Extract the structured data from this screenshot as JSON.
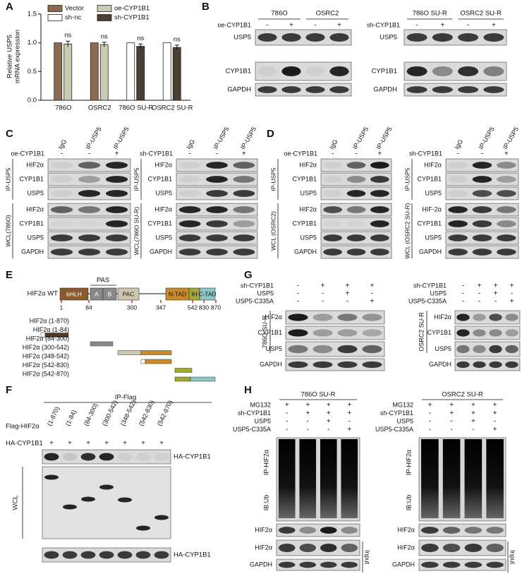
{
  "chart_data": {
    "type": "bar",
    "label": "A",
    "ylabel": [
      "Relative USP5",
      "mRNA expression"
    ],
    "categories": [
      "786O",
      "OSRC2",
      "786O SU-R",
      "OSRC2 SU-R"
    ],
    "series": [
      {
        "name": "Vector",
        "color": "#8c6a4f",
        "values": [
          1,
          1,
          null,
          null
        ]
      },
      {
        "name": "oe-CYP1B1",
        "color": "#c9ccb3",
        "values": [
          0.98,
          0.97,
          null,
          null
        ],
        "errors": [
          0.05,
          0.04,
          null,
          null
        ]
      },
      {
        "name": "sh-nc",
        "color": "#ffffff",
        "values": [
          null,
          null,
          1,
          1
        ]
      },
      {
        "name": "sh-CYP1B1",
        "color": "#4b3e33",
        "values": [
          null,
          null,
          0.94,
          0.92
        ],
        "errors": [
          null,
          null,
          0.04,
          0.04
        ]
      }
    ],
    "ylim": [
      0,
      1.5
    ],
    "yticks": [
      {
        "value": 0,
        "label": "0.0"
      },
      0.5,
      {
        "value": 1,
        "label": "1.0"
      },
      1.5
    ],
    "annotations": [
      "ns",
      "ns",
      "ns",
      "ns"
    ]
  },
  "B": {
    "label": "B",
    "blots": [
      {
        "groups": [
          "786O",
          "OSRC2"
        ],
        "condition": "oe-CYP1B1",
        "signs": [
          "-",
          "+",
          "-",
          "+"
        ],
        "rows": [
          "USP5",
          "CYP1B1",
          "GAPDH"
        ]
      },
      {
        "groups": [
          "786O SU-R",
          "OSRC2 SU-R"
        ],
        "condition": "sh-CYP1B1",
        "signs": [
          "-",
          "+",
          "-",
          "+"
        ],
        "rows": [
          "USP5",
          "CYP1B1",
          "GAPDH"
        ]
      }
    ]
  },
  "C": {
    "label": "C",
    "blots": [
      {
        "columns": [
          "IgG",
          "IP-USP5",
          "IP-USP5"
        ],
        "condition": "oe-CYP1B1",
        "signs": [
          "-",
          "-",
          "+"
        ],
        "sections": [
          {
            "name": "IP-USP5",
            "rows": [
              "HIF2α",
              "CYP1B1",
              "USP5"
            ]
          },
          {
            "name": "WCL(786O)",
            "rows": [
              "HIF2α",
              "CYP1B1",
              "USP5",
              "GAPDH"
            ]
          }
        ]
      },
      {
        "columns": [
          "IgG",
          "IP-USP5",
          "IP-USP5"
        ],
        "condition": "sh-CYP1B1",
        "signs": [
          "-",
          "-",
          "+"
        ],
        "sections": [
          {
            "name": "IP-USP5",
            "rows": [
              "HIF2α",
              "CYP1B1",
              "USP5"
            ]
          },
          {
            "name": "WCL(786O SU-R)",
            "rows": [
              "HIF2α",
              "CYP1B1",
              "USP5",
              "GAPDH"
            ]
          }
        ]
      }
    ]
  },
  "D": {
    "label": "D",
    "blots": [
      {
        "columns": [
          "IgG",
          "IP-USP5",
          "IP-USP5"
        ],
        "condition": "oe-CYP1B1",
        "signs": [
          "-",
          "-",
          "+"
        ],
        "sections": [
          {
            "name": "IP-USP5",
            "rows": [
              "HIF2α",
              "CYP1B1",
              "USP5"
            ]
          },
          {
            "name": "WCL (OSRC2)",
            "rows": [
              "HIF2α",
              "CYP1B1",
              "USP5",
              "GAPDH"
            ]
          }
        ]
      },
      {
        "columns": [
          "IgG",
          "IP-USP5",
          "IP-USP5"
        ],
        "condition": "sh-CYP1B1",
        "signs": [
          "-",
          "-",
          "+"
        ],
        "sections": [
          {
            "name": "IP-USP5",
            "rows": [
              "HIF2α",
              "CYP1B1",
              "USP5"
            ]
          },
          {
            "name": "WCL (OSRC2 SU-R)",
            "rows": [
              "HIF-2α",
              "CYP1B1",
              "USP5",
              "GAPDH"
            ]
          }
        ]
      }
    ]
  },
  "E": {
    "label": "E",
    "domain_group": "PAS",
    "construct": "HIF2α WT",
    "domains": [
      "bHLH",
      "A",
      "B",
      "PAC",
      "N-TAD",
      "IH",
      "C-TAD"
    ],
    "positions": [
      1,
      84,
      300,
      347,
      542,
      830,
      870
    ],
    "fragments": [
      "HIF2α (1-870)",
      "HIF2α (1-84)",
      "HIF2α (84-300)",
      "HIF2α (300-542)",
      "HIF2α (348-542)",
      "HIF2α (542-830)",
      "HIF2α (542-870)"
    ]
  },
  "F": {
    "label": "F",
    "title": "IP-Flag",
    "bait": "Flag-HIF2α",
    "columns": [
      "(1-870)",
      "(1-84)",
      "(84-300)",
      "(300-542)",
      "(348-542)",
      "(542-830)",
      "(542-870)"
    ],
    "prey": "HA-CYP1B1",
    "signs": [
      "+",
      "+",
      "+",
      "+",
      "+",
      "+",
      "+"
    ],
    "lysate": "WCL",
    "blots": [
      "HA-CYP1B1",
      "HA-CYP1B1"
    ]
  },
  "G": {
    "label": "G",
    "blots": [
      {
        "conditions": [
          {
            "name": "sh-CYP1B1",
            "signs": [
              "-",
              "+",
              "+",
              "+"
            ]
          },
          {
            "name": "USP5",
            "signs": [
              "-",
              "-",
              "+",
              "-"
            ]
          },
          {
            "name": "USP5-C335A",
            "signs": [
              "-",
              "-",
              "-",
              "+"
            ]
          }
        ],
        "cell": "786O SU-R",
        "rows": [
          "HIF2α",
          "CYP1B1",
          "USP5",
          "GAPDH"
        ]
      },
      {
        "conditions": [
          {
            "name": "sh-CYP1B1",
            "signs": [
              "-",
              "+",
              "+",
              "+"
            ]
          },
          {
            "name": "USP5",
            "signs": [
              "-",
              "-",
              "+",
              "-"
            ]
          },
          {
            "name": "USP5-C335A",
            "signs": [
              "-",
              "-",
              "-",
              "+"
            ]
          }
        ],
        "cell": "OSRC2 SU-R",
        "rows": [
          "HIF2α",
          "CYP1B1",
          "USP5",
          "GAPDH"
        ]
      }
    ]
  },
  "H": {
    "label": "H",
    "blots": [
      {
        "title": "786O SU-R",
        "conditions": [
          {
            "name": "MG132",
            "signs": [
              "+",
              "+",
              "+",
              "+"
            ]
          },
          {
            "name": "sh-CYP1B1",
            "signs": [
              "-",
              "+",
              "+",
              "+"
            ]
          },
          {
            "name": "USP5",
            "signs": [
              "-",
              "-",
              "+",
              "-"
            ]
          },
          {
            "name": "USP5-C335A",
            "signs": [
              "-",
              "-",
              "-",
              "+"
            ]
          }
        ],
        "ip": "IP-HIF2α",
        "ib": "IB:Ub",
        "rows": [
          "HIF2α",
          "HIF2α",
          "GAPDH"
        ],
        "input": "Input"
      },
      {
        "title": "OSRC2 SU-R",
        "conditions": [
          {
            "name": "MG132",
            "signs": [
              "+",
              "+",
              "+",
              "+"
            ]
          },
          {
            "name": "sh-CYP1B1",
            "signs": [
              "-",
              "+",
              "+",
              "+"
            ]
          },
          {
            "name": "USP5",
            "signs": [
              "-",
              "-",
              "+",
              "-"
            ]
          },
          {
            "name": "USP5-C335A",
            "signs": [
              "-",
              "-",
              "-",
              "+"
            ]
          }
        ],
        "ip": "IP-HIF2α",
        "ib": "IB:Ub",
        "rows": [
          "HIF2α",
          "HIF2α",
          "GAPDH"
        ],
        "input": "Input"
      }
    ]
  }
}
